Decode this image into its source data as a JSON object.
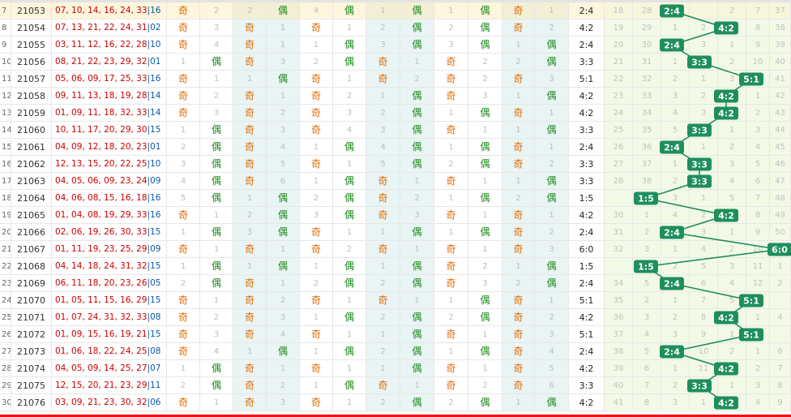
{
  "ji_label": "奇",
  "ou_label": "偶",
  "ratio_categories": [
    "1:5",
    "2:4",
    "3:3",
    "4:2",
    "5:1",
    "6:0"
  ],
  "colors": {
    "ji": "#e06a00",
    "ou": "#1b8a1b",
    "badge": "#1e8f5c",
    "draw_numbers": "#cc0000",
    "special_number": "#0a5aa8"
  },
  "rows": [
    {
      "idx": "7",
      "issue": "21053",
      "nums": "07, 10, 14, 16, 24, 33",
      "sp": "16",
      "cols": [
        "奇",
        "2",
        "2",
        "偶",
        "4",
        "偶",
        "1",
        "偶",
        "1",
        "偶",
        "奇",
        "1"
      ],
      "ratio": "2:4",
      "dist": [
        "18",
        "28",
        "",
        "",
        "2",
        "7",
        "37"
      ]
    },
    {
      "idx": "8",
      "issue": "21054",
      "nums": "07, 13, 21, 22, 24, 31",
      "sp": "02",
      "cols": [
        "奇",
        "3",
        "奇",
        "1",
        "奇",
        "1",
        "2",
        "偶",
        "2",
        "偶",
        "奇",
        "2"
      ],
      "ratio": "4:2",
      "dist": [
        "19",
        "29",
        "1",
        "2",
        "",
        "8",
        "38"
      ]
    },
    {
      "idx": "9",
      "issue": "21055",
      "nums": "03, 11, 12, 16, 22, 28",
      "sp": "10",
      "cols": [
        "奇",
        "4",
        "奇",
        "1",
        "1",
        "偶",
        "3",
        "偶",
        "3",
        "偶",
        "1",
        "偶"
      ],
      "ratio": "2:4",
      "dist": [
        "20",
        "30",
        "",
        "3",
        "1",
        "9",
        "39"
      ]
    },
    {
      "idx": "10",
      "issue": "21056",
      "nums": "08, 21, 22, 23, 29, 32",
      "sp": "01",
      "cols": [
        "1",
        "偶",
        "奇",
        "3",
        "2",
        "偶",
        "奇",
        "1",
        "奇",
        "2",
        "2",
        "偶"
      ],
      "ratio": "3:3",
      "dist": [
        "21",
        "31",
        "1",
        "",
        "2",
        "10",
        "40"
      ]
    },
    {
      "idx": "11",
      "issue": "21057",
      "nums": "05, 06, 09, 17, 25, 33",
      "sp": "16",
      "cols": [
        "奇",
        "1",
        "1",
        "偶",
        "奇",
        "1",
        "奇",
        "2",
        "奇",
        "2",
        "奇",
        "3"
      ],
      "ratio": "5:1",
      "dist": [
        "22",
        "32",
        "2",
        "1",
        "3",
        "",
        "41"
      ]
    },
    {
      "idx": "12",
      "issue": "21058",
      "nums": "09, 11, 13, 18, 19, 28",
      "sp": "14",
      "cols": [
        "奇",
        "2",
        "奇",
        "1",
        "奇",
        "2",
        "1",
        "偶",
        "奇",
        "3",
        "1",
        "偶"
      ],
      "ratio": "4:2",
      "dist": [
        "23",
        "33",
        "3",
        "2",
        "",
        "1",
        "42"
      ]
    },
    {
      "idx": "13",
      "issue": "21059",
      "nums": "01, 09, 11, 18, 32, 33",
      "sp": "14",
      "cols": [
        "奇",
        "3",
        "奇",
        "2",
        "奇",
        "3",
        "2",
        "偶",
        "1",
        "偶",
        "奇",
        "1"
      ],
      "ratio": "4:2",
      "dist": [
        "24",
        "34",
        "4",
        "3",
        "",
        "2",
        "43"
      ]
    },
    {
      "idx": "14",
      "issue": "21060",
      "nums": "10, 11, 17, 20, 29, 30",
      "sp": "15",
      "cols": [
        "1",
        "偶",
        "奇",
        "3",
        "奇",
        "4",
        "3",
        "偶",
        "奇",
        "1",
        "1",
        "偶"
      ],
      "ratio": "3:3",
      "dist": [
        "25",
        "35",
        "5",
        "",
        "1",
        "3",
        "44"
      ]
    },
    {
      "idx": "15",
      "issue": "21061",
      "nums": "04, 09, 12, 18, 20, 23",
      "sp": "01",
      "cols": [
        "2",
        "偶",
        "奇",
        "4",
        "1",
        "偶",
        "4",
        "偶",
        "1",
        "偶",
        "奇",
        "1"
      ],
      "ratio": "2:4",
      "dist": [
        "26",
        "36",
        "",
        "1",
        "2",
        "4",
        "45"
      ]
    },
    {
      "idx": "16",
      "issue": "21062",
      "nums": "12, 13, 15, 20, 22, 25",
      "sp": "10",
      "cols": [
        "3",
        "偶",
        "奇",
        "5",
        "奇",
        "1",
        "5",
        "偶",
        "2",
        "偶",
        "奇",
        "2"
      ],
      "ratio": "3:3",
      "dist": [
        "27",
        "37",
        "1",
        "",
        "3",
        "5",
        "46"
      ]
    },
    {
      "idx": "17",
      "issue": "21063",
      "nums": "04, 05, 06, 09, 23, 24",
      "sp": "09",
      "cols": [
        "4",
        "偶",
        "奇",
        "6",
        "1",
        "偶",
        "奇",
        "1",
        "奇",
        "1",
        "1",
        "偶"
      ],
      "ratio": "3:3",
      "dist": [
        "28",
        "38",
        "2",
        "",
        "4",
        "6",
        "47"
      ]
    },
    {
      "idx": "18",
      "issue": "21064",
      "nums": "04, 06, 08, 15, 16, 18",
      "sp": "16",
      "cols": [
        "5",
        "偶",
        "1",
        "偶",
        "2",
        "偶",
        "奇",
        "2",
        "1",
        "偶",
        "2",
        "偶"
      ],
      "ratio": "1:5",
      "dist": [
        "",
        "39",
        "3",
        "1",
        "5",
        "7",
        "48"
      ]
    },
    {
      "idx": "19",
      "issue": "21065",
      "nums": "01, 04, 08, 19, 29, 33",
      "sp": "16",
      "cols": [
        "奇",
        "1",
        "2",
        "偶",
        "3",
        "偶",
        "奇",
        "3",
        "奇",
        "1",
        "奇",
        "1"
      ],
      "ratio": "4:2",
      "dist": [
        "30",
        "1",
        "4",
        "2",
        "",
        "8",
        "49"
      ]
    },
    {
      "idx": "20",
      "issue": "21066",
      "nums": "02, 06, 19, 26, 30, 33",
      "sp": "15",
      "cols": [
        "1",
        "偶",
        "3",
        "偶",
        "奇",
        "1",
        "1",
        "偶",
        "1",
        "偶",
        "奇",
        "2"
      ],
      "ratio": "2:4",
      "dist": [
        "31",
        "2",
        "",
        "3",
        "1",
        "9",
        "50"
      ]
    },
    {
      "idx": "21",
      "issue": "21067",
      "nums": "01, 11, 19, 23, 25, 29",
      "sp": "09",
      "cols": [
        "奇",
        "1",
        "奇",
        "1",
        "奇",
        "2",
        "奇",
        "1",
        "奇",
        "1",
        "奇",
        "3"
      ],
      "ratio": "6:0",
      "dist": [
        "32",
        "3",
        "1",
        "4",
        "2",
        "10",
        ""
      ]
    },
    {
      "idx": "22",
      "issue": "21068",
      "nums": "04, 14, 18, 24, 31, 32",
      "sp": "15",
      "cols": [
        "1",
        "偶",
        "1",
        "偶",
        "1",
        "偶",
        "1",
        "偶",
        "奇",
        "2",
        "1",
        "偶"
      ],
      "ratio": "1:5",
      "dist": [
        "",
        "4",
        "2",
        "5",
        "3",
        "11",
        "1"
      ]
    },
    {
      "idx": "23",
      "issue": "21069",
      "nums": "06, 11, 18, 20, 23, 26",
      "sp": "05",
      "cols": [
        "2",
        "偶",
        "奇",
        "1",
        "2",
        "偶",
        "2",
        "偶",
        "奇",
        "3",
        "2",
        "偶"
      ],
      "ratio": "2:4",
      "dist": [
        "34",
        "5",
        "",
        "6",
        "4",
        "12",
        "2"
      ]
    },
    {
      "idx": "24",
      "issue": "21070",
      "nums": "01, 05, 11, 15, 16, 29",
      "sp": "15",
      "cols": [
        "奇",
        "1",
        "奇",
        "2",
        "奇",
        "1",
        "奇",
        "1",
        "1",
        "偶",
        "奇",
        "1"
      ],
      "ratio": "5:1",
      "dist": [
        "35",
        "2",
        "1",
        "7",
        "5",
        "",
        ""
      ]
    },
    {
      "idx": "25",
      "issue": "21071",
      "nums": "01, 07, 24, 31, 32, 33",
      "sp": "08",
      "cols": [
        "奇",
        "2",
        "奇",
        "3",
        "1",
        "偶",
        "2",
        "偶",
        "2",
        "偶",
        "奇",
        "2"
      ],
      "ratio": "4:2",
      "dist": [
        "36",
        "3",
        "2",
        "8",
        "",
        "1",
        "4"
      ]
    },
    {
      "idx": "26",
      "issue": "21072",
      "nums": "01, 09, 15, 16, 19, 21",
      "sp": "15",
      "cols": [
        "奇",
        "3",
        "奇",
        "4",
        "奇",
        "1",
        "1",
        "偶",
        "奇",
        "1",
        "奇",
        "3"
      ],
      "ratio": "5:1",
      "dist": [
        "37",
        "4",
        "3",
        "9",
        "1",
        "",
        ""
      ]
    },
    {
      "idx": "27",
      "issue": "21073",
      "nums": "01, 06, 18, 22, 24, 25",
      "sp": "08",
      "cols": [
        "奇",
        "4",
        "1",
        "偶",
        "1",
        "偶",
        "2",
        "偶",
        "1",
        "偶",
        "奇",
        "4"
      ],
      "ratio": "2:4",
      "dist": [
        "38",
        "5",
        "",
        "10",
        "2",
        "1",
        "6"
      ]
    },
    {
      "idx": "28",
      "issue": "21074",
      "nums": "04, 05, 09, 14, 25, 27",
      "sp": "07",
      "cols": [
        "1",
        "偶",
        "奇",
        "1",
        "奇",
        "1",
        "1",
        "偶",
        "奇",
        "1",
        "奇",
        "5"
      ],
      "ratio": "4:2",
      "dist": [
        "39",
        "6",
        "1",
        "11",
        "",
        "2",
        "7"
      ]
    },
    {
      "idx": "29",
      "issue": "21075",
      "nums": "12, 15, 20, 21, 23, 29",
      "sp": "11",
      "cols": [
        "2",
        "偶",
        "奇",
        "2",
        "1",
        "偶",
        "奇",
        "1",
        "奇",
        "2",
        "奇",
        "6"
      ],
      "ratio": "3:3",
      "dist": [
        "40",
        "7",
        "2",
        "",
        "1",
        "3",
        "8"
      ]
    },
    {
      "idx": "30",
      "issue": "21076",
      "nums": "03, 09, 21, 23, 30, 32",
      "sp": "06",
      "cols": [
        "奇",
        "1",
        "奇",
        "3",
        "奇",
        "1",
        "2",
        "偶",
        "2",
        "偶",
        "1",
        "偶"
      ],
      "ratio": "4:2",
      "dist": [
        "41",
        "8",
        "3",
        "1",
        "",
        "4",
        "9"
      ]
    }
  ]
}
